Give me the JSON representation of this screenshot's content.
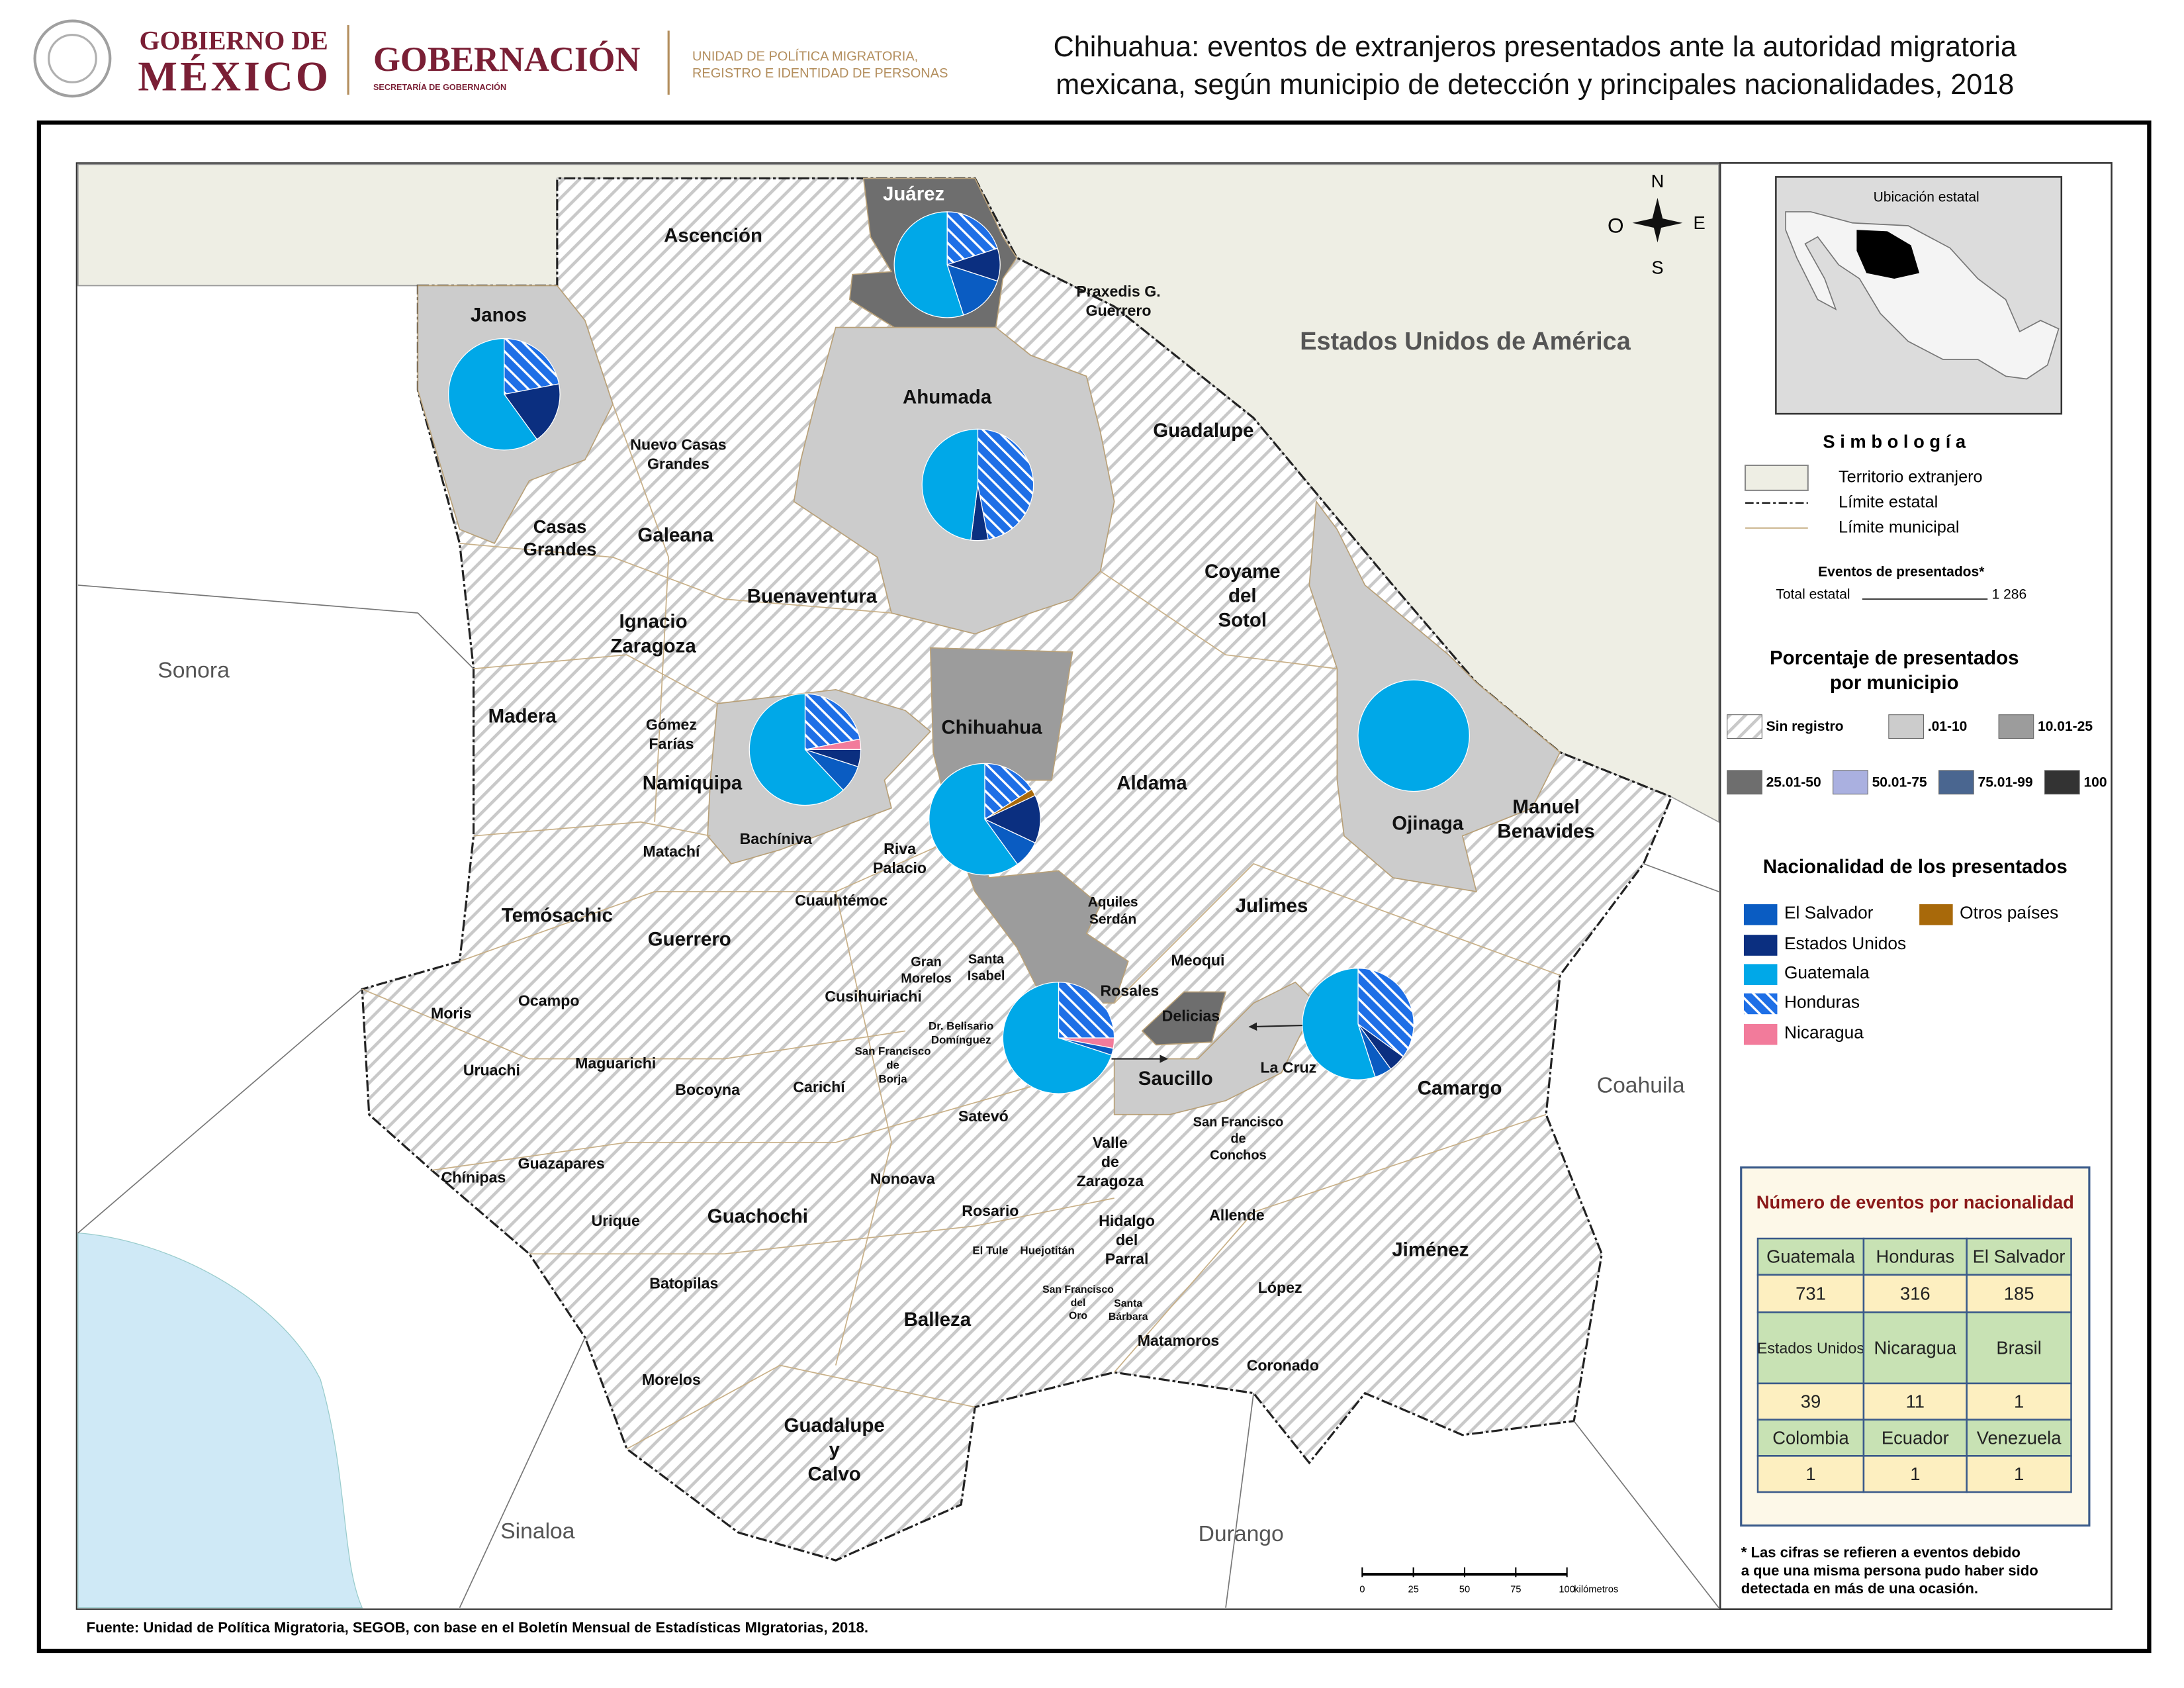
{
  "header": {
    "gov_line1": "GOBIERNO DE",
    "gov_line2": "MÉXICO",
    "ministry": "GOBERNACIÓN",
    "ministry_sub": "SECRETARÍA DE GOBERNACIÓN",
    "unit": [
      "UNIDAD DE POLÍTICA MIGRATORIA,",
      "REGISTRO E IDENTIDAD DE PERSONAS"
    ]
  },
  "title": [
    "Chihuahua: eventos de extranjeros presentados ante la autoridad migratoria",
    "mexicana, según municipio de detección y principales nacionalidades, 2018"
  ],
  "map": {
    "neighbors": [
      "Sonora",
      "Sinaloa",
      "Durango",
      "Coahuila",
      "Estados Unidos de América"
    ],
    "municipalities": [
      [
        "Juárez"
      ],
      [
        "Ascención"
      ],
      [
        "Praxedis G.",
        "Guerrero"
      ],
      [
        "Janos"
      ],
      [
        "Ahumada"
      ],
      [
        "Guadalupe"
      ],
      [
        "Nuevo Casas",
        "Grandes"
      ],
      [
        "Casas",
        "Grandes"
      ],
      [
        "Galeana"
      ],
      [
        "Buenaventura"
      ],
      [
        "Coyame",
        "del",
        "Sotol"
      ],
      [
        "Ignacio",
        "Zaragoza"
      ],
      [
        "Madera"
      ],
      [
        "Gómez",
        "Farías"
      ],
      [
        "Namiquipa"
      ],
      [
        "Chihuahua"
      ],
      [
        "Aldama"
      ],
      [
        "Ojinaga"
      ],
      [
        "Manuel",
        "Benavides"
      ],
      [
        "Matachí"
      ],
      [
        "Bachíniva"
      ],
      [
        "Riva",
        "Palacio"
      ],
      [
        "Temósachic"
      ],
      [
        "Cuauhtémoc"
      ],
      [
        "Aquiles",
        "Serdán"
      ],
      [
        "Julimes"
      ],
      [
        "Guerrero"
      ],
      [
        "Gran",
        "Morelos"
      ],
      [
        "Santa",
        "Isabel"
      ],
      [
        "Meoqui"
      ],
      [
        "Rosales"
      ],
      [
        "Moris"
      ],
      [
        "Ocampo"
      ],
      [
        "Cusihuiriachi"
      ],
      [
        "Delicias"
      ],
      [
        "Dr. Belisario",
        "Domínguez"
      ],
      [
        "San Francisco",
        "de",
        "Borja"
      ],
      [
        "Uruachi"
      ],
      [
        "Maguarichi"
      ],
      [
        "La Cruz"
      ],
      [
        "Saucillo"
      ],
      [
        "Camargo"
      ],
      [
        "Bocoyna"
      ],
      [
        "Carichí"
      ],
      [
        "Satevó"
      ],
      [
        "San Francisco",
        "de",
        "Conchos"
      ],
      [
        "Valle",
        "de",
        "Zaragoza"
      ],
      [
        "Guazapares"
      ],
      [
        "Chínipas"
      ],
      [
        "Nonoava"
      ],
      [
        "Rosario"
      ],
      [
        "Guachochi"
      ],
      [
        "Hidalgo",
        "del",
        "Parral"
      ],
      [
        "Allende"
      ],
      [
        "Urique"
      ],
      [
        "El Tule"
      ],
      [
        "Huejotitán"
      ],
      [
        "Jiménez"
      ],
      [
        "Batopilas"
      ],
      [
        "López"
      ],
      [
        "San Francisco",
        "del",
        "Oro"
      ],
      [
        "Santa",
        "Bárbara"
      ],
      [
        "Balleza"
      ],
      [
        "Matamoros"
      ],
      [
        "Coronado"
      ],
      [
        "Morelos"
      ],
      [
        "Guadalupe",
        "y",
        "Calvo"
      ]
    ],
    "compass": {
      "n": "N",
      "s": "S",
      "e": "E",
      "w": "O"
    },
    "scale": {
      "ticks": [
        0,
        25,
        50,
        75,
        100
      ],
      "unit": "kilómetros"
    },
    "pies": [
      {
        "values": [
          15,
          10,
          55,
          20,
          0,
          0
        ]
      },
      {
        "values": [
          0,
          18,
          60,
          22,
          0,
          0
        ]
      },
      {
        "values": [
          0,
          5,
          48,
          47,
          0,
          0
        ]
      },
      {
        "values": [
          8,
          5,
          62,
          22,
          3,
          0
        ]
      },
      {
        "values": [
          8,
          14,
          60,
          16,
          0,
          2
        ]
      },
      {
        "values": [
          0,
          0,
          100,
          0,
          0,
          0
        ]
      },
      {
        "values": [
          2,
          0,
          70,
          25,
          3,
          0
        ]
      },
      {
        "values": [
          5,
          5,
          55,
          35,
          0,
          0
        ]
      }
    ]
  },
  "legend": {
    "inset_title": "Ubicación estatal",
    "symbology_title": "S i m b o l o g í a",
    "symbols": [
      "Territorio extranjero",
      "Límite estatal",
      "Límite municipal"
    ],
    "events_title": "Eventos de presentados*",
    "total_label": "Total estatal",
    "total_value": "1 286",
    "percent_title": [
      "Porcentaje de presentados",
      "por municipio"
    ],
    "classes": [
      {
        "label": "Sin registro",
        "pattern": "hatch"
      },
      {
        "label": ".01-10",
        "color": "#cccccc"
      },
      {
        "label": "10.01-25",
        "color": "#9c9c9c"
      },
      {
        "label": "25.01-50",
        "color": "#6e6e6e"
      },
      {
        "label": "50.01-75",
        "color": "#aab0e0"
      },
      {
        "label": "75.01-99",
        "color": "#4a6690"
      },
      {
        "label": "100",
        "color": "#333333"
      }
    ],
    "nationality_title": "Nacionalidad de los presentados",
    "nationalities": [
      {
        "name": "El Salvador",
        "color": "#0a5cc2"
      },
      {
        "name": "Estados Unidos",
        "color": "#0b2f80"
      },
      {
        "name": "Guatemala",
        "color": "#00a8e8"
      },
      {
        "name": "Honduras",
        "color": "#1e6fe6",
        "pattern": "hatch"
      },
      {
        "name": "Nicaragua",
        "color": "#f27b9b"
      },
      {
        "name": "Otros países",
        "color": "#a8690a"
      }
    ]
  },
  "table": {
    "title": "Número de eventos por nacionalidad",
    "rows": [
      [
        "Guatemala",
        "Honduras",
        "El Salvador"
      ],
      [
        731,
        316,
        185
      ],
      [
        "Estados Unidos",
        "Nicaragua",
        "Brasil"
      ],
      [
        39,
        11,
        1
      ],
      [
        "Colombia",
        "Ecuador",
        "Venezuela"
      ],
      [
        1,
        1,
        1
      ]
    ]
  },
  "footnote": [
    "* Las cifras se refieren a eventos debido",
    "a que una misma persona pudo haber sido",
    "detectada en más de una ocasión."
  ],
  "source": "Fuente: Unidad de Política Migratoria, SEGOB, con base en el Boletín Mensual de Estadísticas MIgratorias, 2018."
}
